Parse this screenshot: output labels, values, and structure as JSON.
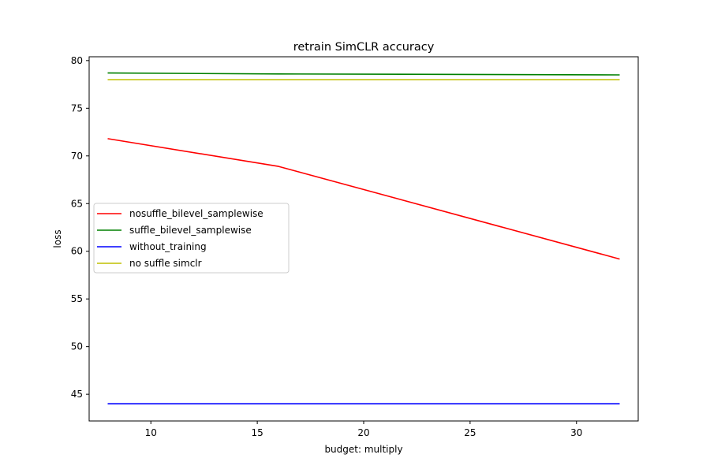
{
  "chart_data": {
    "type": "line",
    "title": "retrain SimCLR accuracy",
    "xlabel": "budget: multiply",
    "ylabel": "loss",
    "xlim": [
      7.1,
      32.9
    ],
    "ylim": [
      42.2,
      80.4
    ],
    "xticks": [
      10,
      15,
      20,
      25,
      30
    ],
    "yticks": [
      45,
      50,
      55,
      60,
      65,
      70,
      75,
      80
    ],
    "legend_position": "center-left",
    "grid": false,
    "series": [
      {
        "name": "nosuffle_bilevel_samplewise",
        "color": "#ff0000",
        "x": [
          8,
          16,
          32
        ],
        "y": [
          71.8,
          68.9,
          59.2
        ]
      },
      {
        "name": "suffle_bilevel_samplewise",
        "color": "#008000",
        "x": [
          8,
          16,
          32
        ],
        "y": [
          78.7,
          78.6,
          78.5
        ]
      },
      {
        "name": "without_training",
        "color": "#0000ff",
        "x": [
          8,
          16,
          32
        ],
        "y": [
          44.0,
          44.0,
          44.0
        ]
      },
      {
        "name": "no suffle simclr",
        "color": "#bfbf00",
        "x": [
          8,
          16,
          32
        ],
        "y": [
          78.0,
          78.0,
          78.0
        ]
      }
    ]
  }
}
